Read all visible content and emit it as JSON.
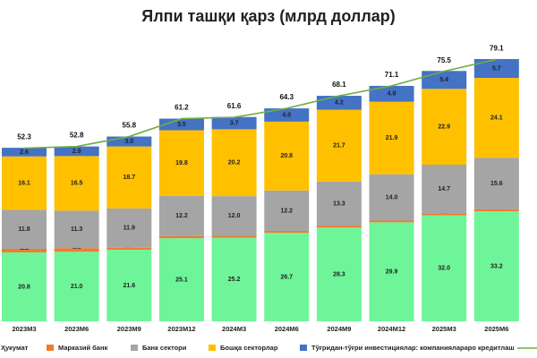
{
  "chart_data": {
    "type": "stacked-bar",
    "title": "Ялпи ташқи қарз (млрд доллар)",
    "categories": [
      "2023M3",
      "2023M6",
      "2023M9",
      "2023M12",
      "2024M3",
      "2024M6",
      "2024M9",
      "2024M12",
      "2025M3",
      "2025M6"
    ],
    "series": [
      {
        "name": "Ҳукумат",
        "color": "#6ef59a",
        "values": [
          20.8,
          21.0,
          21.6,
          25.1,
          25.2,
          26.7,
          28.3,
          29.9,
          32.0,
          33.2
        ],
        "value_labels": [
          "20.8",
          "21.0",
          "21.6",
          "25.1",
          "25.2",
          "26.7",
          "28.3",
          "29.9",
          "32.0",
          "33.2"
        ]
      },
      {
        "name": "Марказий банк",
        "color": "#ed7d31",
        "values": [
          1.1,
          1.1,
          0.6,
          0.6,
          0.6,
          0.6,
          0.6,
          0.5,
          0.6,
          0.6
        ]
      },
      {
        "name": "Банк сектори",
        "color": "#a5a5a5",
        "values": [
          11.8,
          11.3,
          11.9,
          12.2,
          12.0,
          12.2,
          13.3,
          14.0,
          14.7,
          15.6
        ],
        "value_labels": [
          "11.8",
          "11.3",
          "11.9",
          "12.2",
          "12.0",
          "12.2",
          "13.3",
          "14.0",
          "14.7",
          "15.6"
        ]
      },
      {
        "name": "Бошқа секторлар",
        "color": "#ffc000",
        "values": [
          16.1,
          16.5,
          18.7,
          19.8,
          20.2,
          20.8,
          21.7,
          21.9,
          22.9,
          24.1
        ]
      },
      {
        "name": "Тўғридан-тўғри инвестициялар: компаниялараро кредитлаш",
        "color": "#4472c4",
        "values": [
          2.6,
          2.9,
          3.0,
          3.5,
          3.7,
          4.0,
          4.2,
          4.8,
          5.4,
          5.7
        ],
        "value_labels": [
          "2.6",
          "2.9",
          "3.0",
          "3.5",
          "3.7",
          "4.0",
          "4.2",
          "4.8",
          "5.4",
          "5.7"
        ]
      }
    ],
    "line": {
      "color": "#70ad47",
      "values": [
        52.3,
        52.8,
        55.8,
        61.2,
        61.6,
        64.3,
        68.1,
        71.1,
        75.5,
        79.1
      ]
    }
  }
}
